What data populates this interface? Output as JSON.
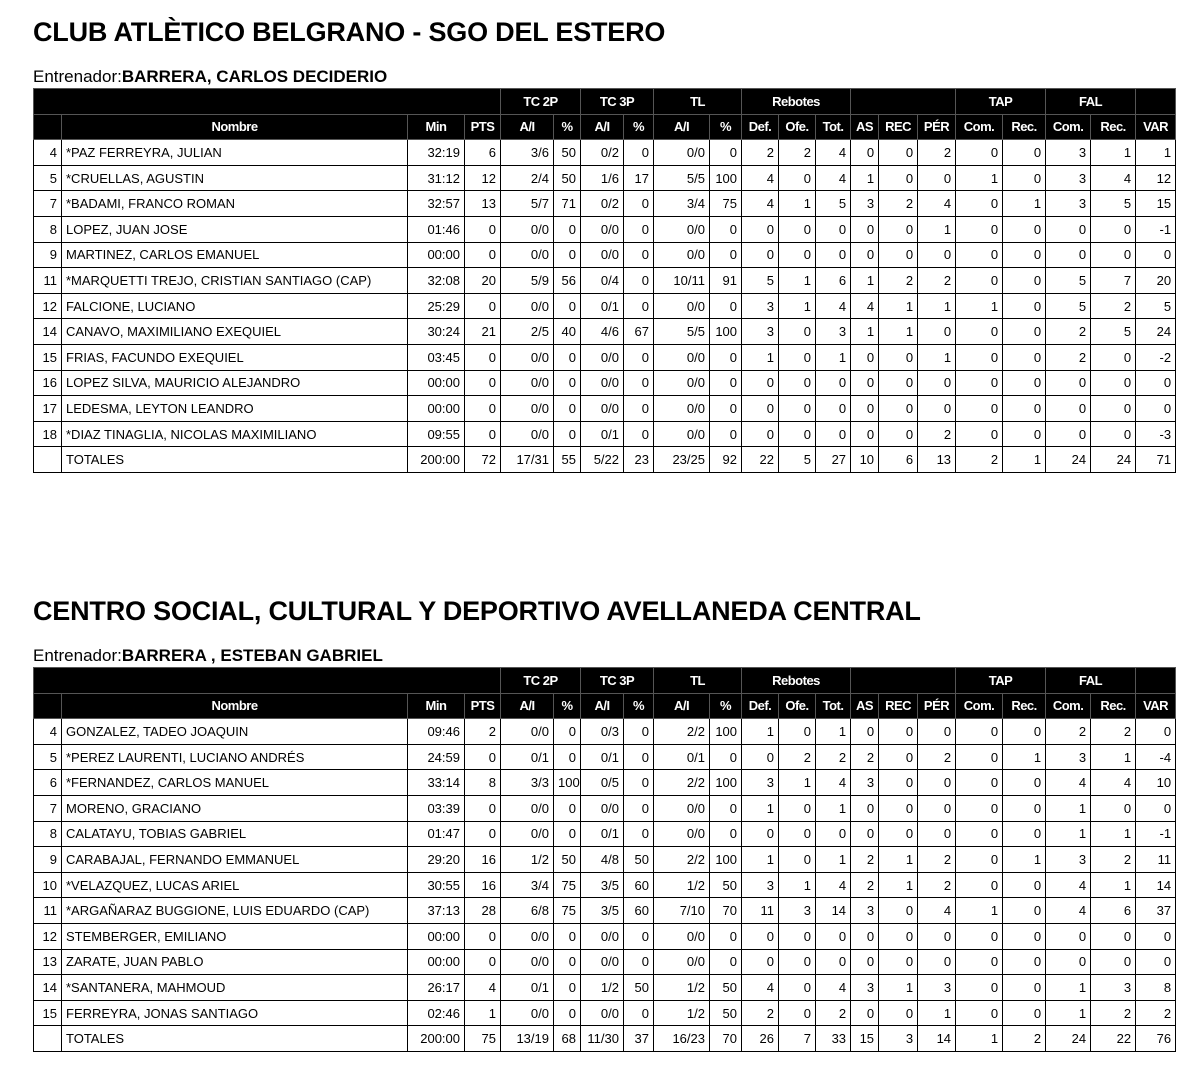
{
  "group_headers": [
    "TC 2P",
    "TC 3P",
    "TL",
    "Rebotes",
    "TAP",
    "FAL"
  ],
  "headers": [
    "Nombre",
    "Min",
    "PTS",
    "A/I",
    "%",
    "A/I",
    "%",
    "A/I",
    "%",
    "Def.",
    "Ofe.",
    "Tot.",
    "AS",
    "REC",
    "PÉR",
    "Com.",
    "Rec.",
    "Com.",
    "Rec.",
    "VAR"
  ],
  "teams": [
    {
      "name": "CLUB ATLÈTICO BELGRANO - SGO DEL ESTERO",
      "coach_label": "Entrenador:",
      "coach": "BARRERA, CARLOS DECIDERIO",
      "rows": [
        [
          "4",
          "*PAZ FERREYRA, JULIAN",
          "32:19",
          "6",
          "3/6",
          "50",
          "0/2",
          "0",
          "0/0",
          "0",
          "2",
          "2",
          "4",
          "0",
          "0",
          "2",
          "0",
          "0",
          "3",
          "1",
          "1"
        ],
        [
          "5",
          "*CRUELLAS, AGUSTIN",
          "31:12",
          "12",
          "2/4",
          "50",
          "1/6",
          "17",
          "5/5",
          "100",
          "4",
          "0",
          "4",
          "1",
          "0",
          "0",
          "1",
          "0",
          "3",
          "4",
          "12"
        ],
        [
          "7",
          "*BADAMI, FRANCO ROMAN",
          "32:57",
          "13",
          "5/7",
          "71",
          "0/2",
          "0",
          "3/4",
          "75",
          "4",
          "1",
          "5",
          "3",
          "2",
          "4",
          "0",
          "1",
          "3",
          "5",
          "15"
        ],
        [
          "8",
          "LOPEZ, JUAN JOSE",
          "01:46",
          "0",
          "0/0",
          "0",
          "0/0",
          "0",
          "0/0",
          "0",
          "0",
          "0",
          "0",
          "0",
          "0",
          "1",
          "0",
          "0",
          "0",
          "0",
          "-1"
        ],
        [
          "9",
          "MARTINEZ, CARLOS EMANUEL",
          "00:00",
          "0",
          "0/0",
          "0",
          "0/0",
          "0",
          "0/0",
          "0",
          "0",
          "0",
          "0",
          "0",
          "0",
          "0",
          "0",
          "0",
          "0",
          "0",
          "0"
        ],
        [
          "11",
          "*MARQUETTI TREJO, CRISTIAN SANTIAGO (CAP)",
          "32:08",
          "20",
          "5/9",
          "56",
          "0/4",
          "0",
          "10/11",
          "91",
          "5",
          "1",
          "6",
          "1",
          "2",
          "2",
          "0",
          "0",
          "5",
          "7",
          "20"
        ],
        [
          "12",
          "FALCIONE, LUCIANO",
          "25:29",
          "0",
          "0/0",
          "0",
          "0/1",
          "0",
          "0/0",
          "0",
          "3",
          "1",
          "4",
          "4",
          "1",
          "1",
          "1",
          "0",
          "5",
          "2",
          "5"
        ],
        [
          "14",
          "CANAVO, MAXIMILIANO EXEQUIEL",
          "30:24",
          "21",
          "2/5",
          "40",
          "4/6",
          "67",
          "5/5",
          "100",
          "3",
          "0",
          "3",
          "1",
          "1",
          "0",
          "0",
          "0",
          "2",
          "5",
          "24"
        ],
        [
          "15",
          "FRIAS, FACUNDO EXEQUIEL",
          "03:45",
          "0",
          "0/0",
          "0",
          "0/0",
          "0",
          "0/0",
          "0",
          "1",
          "0",
          "1",
          "0",
          "0",
          "1",
          "0",
          "0",
          "2",
          "0",
          "-2"
        ],
        [
          "16",
          "LOPEZ SILVA, MAURICIO ALEJANDRO",
          "00:00",
          "0",
          "0/0",
          "0",
          "0/0",
          "0",
          "0/0",
          "0",
          "0",
          "0",
          "0",
          "0",
          "0",
          "0",
          "0",
          "0",
          "0",
          "0",
          "0"
        ],
        [
          "17",
          "LEDESMA, LEYTON LEANDRO",
          "00:00",
          "0",
          "0/0",
          "0",
          "0/0",
          "0",
          "0/0",
          "0",
          "0",
          "0",
          "0",
          "0",
          "0",
          "0",
          "0",
          "0",
          "0",
          "0",
          "0"
        ],
        [
          "18",
          "*DIAZ TINAGLIA, NICOLAS MAXIMILIANO",
          "09:55",
          "0",
          "0/0",
          "0",
          "0/1",
          "0",
          "0/0",
          "0",
          "0",
          "0",
          "0",
          "0",
          "0",
          "2",
          "0",
          "0",
          "0",
          "0",
          "-3"
        ]
      ],
      "totals": [
        "TOTALES",
        "200:00",
        "72",
        "17/31",
        "55",
        "5/22",
        "23",
        "23/25",
        "92",
        "22",
        "5",
        "27",
        "10",
        "6",
        "13",
        "2",
        "1",
        "24",
        "24",
        "71"
      ]
    },
    {
      "name": "CENTRO SOCIAL, CULTURAL Y DEPORTIVO AVELLANEDA CENTRAL",
      "coach_label": "Entrenador:",
      "coach": "BARRERA , ESTEBAN GABRIEL",
      "rows": [
        [
          "4",
          "GONZALEZ, TADEO JOAQUIN",
          "09:46",
          "2",
          "0/0",
          "0",
          "0/3",
          "0",
          "2/2",
          "100",
          "1",
          "0",
          "1",
          "0",
          "0",
          "0",
          "0",
          "0",
          "2",
          "2",
          "0"
        ],
        [
          "5",
          "*PEREZ LAURENTI, LUCIANO ANDRÉS",
          "24:59",
          "0",
          "0/1",
          "0",
          "0/1",
          "0",
          "0/1",
          "0",
          "0",
          "2",
          "2",
          "2",
          "0",
          "2",
          "0",
          "1",
          "3",
          "1",
          "-4"
        ],
        [
          "6",
          "*FERNANDEZ, CARLOS MANUEL",
          "33:14",
          "8",
          "3/3",
          "100",
          "0/5",
          "0",
          "2/2",
          "100",
          "3",
          "1",
          "4",
          "3",
          "0",
          "0",
          "0",
          "0",
          "4",
          "4",
          "10"
        ],
        [
          "7",
          "MORENO, GRACIANO",
          "03:39",
          "0",
          "0/0",
          "0",
          "0/0",
          "0",
          "0/0",
          "0",
          "1",
          "0",
          "1",
          "0",
          "0",
          "0",
          "0",
          "0",
          "1",
          "0",
          "0"
        ],
        [
          "8",
          "CALATAYU, TOBIAS GABRIEL",
          "01:47",
          "0",
          "0/0",
          "0",
          "0/1",
          "0",
          "0/0",
          "0",
          "0",
          "0",
          "0",
          "0",
          "0",
          "0",
          "0",
          "0",
          "1",
          "1",
          "-1"
        ],
        [
          "9",
          "CARABAJAL, FERNANDO EMMANUEL",
          "29:20",
          "16",
          "1/2",
          "50",
          "4/8",
          "50",
          "2/2",
          "100",
          "1",
          "0",
          "1",
          "2",
          "1",
          "2",
          "0",
          "1",
          "3",
          "2",
          "11"
        ],
        [
          "10",
          "*VELAZQUEZ, LUCAS ARIEL",
          "30:55",
          "16",
          "3/4",
          "75",
          "3/5",
          "60",
          "1/2",
          "50",
          "3",
          "1",
          "4",
          "2",
          "1",
          "2",
          "0",
          "0",
          "4",
          "1",
          "14"
        ],
        [
          "11",
          "*ARGAÑARAZ BUGGIONE, LUIS EDUARDO (CAP)",
          "37:13",
          "28",
          "6/8",
          "75",
          "3/5",
          "60",
          "7/10",
          "70",
          "11",
          "3",
          "14",
          "3",
          "0",
          "4",
          "1",
          "0",
          "4",
          "6",
          "37"
        ],
        [
          "12",
          "STEMBERGER, EMILIANO",
          "00:00",
          "0",
          "0/0",
          "0",
          "0/0",
          "0",
          "0/0",
          "0",
          "0",
          "0",
          "0",
          "0",
          "0",
          "0",
          "0",
          "0",
          "0",
          "0",
          "0"
        ],
        [
          "13",
          "ZARATE, JUAN PABLO",
          "00:00",
          "0",
          "0/0",
          "0",
          "0/0",
          "0",
          "0/0",
          "0",
          "0",
          "0",
          "0",
          "0",
          "0",
          "0",
          "0",
          "0",
          "0",
          "0",
          "0"
        ],
        [
          "14",
          "*SANTANERA, MAHMOUD",
          "26:17",
          "4",
          "0/1",
          "0",
          "1/2",
          "50",
          "1/2",
          "50",
          "4",
          "0",
          "4",
          "3",
          "1",
          "3",
          "0",
          "0",
          "1",
          "3",
          "8"
        ],
        [
          "15",
          "FERREYRA, JONAS SANTIAGO",
          "02:46",
          "1",
          "0/0",
          "0",
          "0/0",
          "0",
          "1/2",
          "50",
          "2",
          "0",
          "2",
          "0",
          "0",
          "1",
          "0",
          "0",
          "1",
          "2",
          "2"
        ]
      ],
      "totals": [
        "TOTALES",
        "200:00",
        "75",
        "13/19",
        "68",
        "11/30",
        "37",
        "16/23",
        "70",
        "26",
        "7",
        "33",
        "15",
        "3",
        "14",
        "1",
        "2",
        "24",
        "22",
        "76"
      ]
    }
  ]
}
